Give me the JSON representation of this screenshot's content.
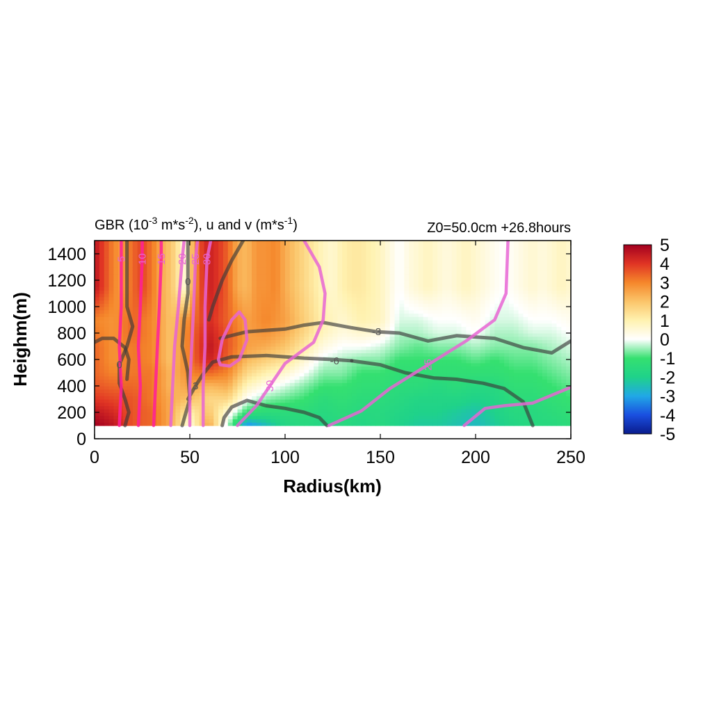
{
  "chart_data": {
    "type": "heatmap",
    "title_left": "GBR (10",
    "title_left_sup1": "-3",
    "title_left_mid": " m*s",
    "title_left_sup2": "-2",
    "title_left_mid2": "), u and v (m*s",
    "title_left_sup3": "-1",
    "title_left_end": ")",
    "title_right": "Z0=50.0cm  +26.8hours",
    "xlabel": "Radius(km)",
    "ylabel": "Heighm(m)",
    "xlim": [
      0,
      250
    ],
    "ylim": [
      0,
      1500
    ],
    "data_ylim": [
      100,
      1500
    ],
    "x_ticks": [
      0,
      50,
      100,
      150,
      200,
      250
    ],
    "y_ticks": [
      0,
      200,
      400,
      600,
      800,
      1000,
      1200,
      1400
    ],
    "colorbar": {
      "min": -5,
      "max": 5,
      "ticks": [
        5,
        4,
        3,
        2,
        1,
        0,
        -1,
        -2,
        -3,
        -4,
        -5
      ],
      "stops": [
        {
          "v": -5,
          "color": "#0a1b8c"
        },
        {
          "v": -4,
          "color": "#1a4fe0"
        },
        {
          "v": -3,
          "color": "#21a8e6"
        },
        {
          "v": -2,
          "color": "#1fd28a"
        },
        {
          "v": -1,
          "color": "#35e070"
        },
        {
          "v": 0,
          "color": "#ffffff"
        },
        {
          "v": 1,
          "color": "#fff2b0"
        },
        {
          "v": 2,
          "color": "#fbc56a"
        },
        {
          "v": 3,
          "color": "#f5872b"
        },
        {
          "v": 4,
          "color": "#e03424"
        },
        {
          "v": 5,
          "color": "#a3001f"
        }
      ]
    },
    "gbr_columns": [
      {
        "x": 0,
        "value": 4.6
      },
      {
        "x": 5,
        "value": 3.8
      },
      {
        "x": 10,
        "value": 3.0
      },
      {
        "x": 15,
        "value": 2.6
      },
      {
        "x": 20,
        "value": 3.4
      },
      {
        "x": 25,
        "value": 3.8
      },
      {
        "x": 30,
        "value": 3.2
      },
      {
        "x": 35,
        "value": 2.4
      },
      {
        "x": 40,
        "value": 2.0
      },
      {
        "x": 44,
        "value": 1.2
      },
      {
        "x": 48,
        "value": 0.2
      },
      {
        "x": 52,
        "value": 2.6
      },
      {
        "x": 56,
        "value": 3.8
      },
      {
        "x": 60,
        "value": 4.4
      },
      {
        "x": 65,
        "value": 4.0
      },
      {
        "x": 70,
        "value": 3.4
      },
      {
        "x": 75,
        "value": 2.4
      },
      {
        "x": 80,
        "value": 2.2
      },
      {
        "x": 85,
        "value": 2.8
      },
      {
        "x": 90,
        "value": 2.8
      },
      {
        "x": 95,
        "value": 3.0
      },
      {
        "x": 100,
        "value": 2.4
      },
      {
        "x": 105,
        "value": 2.0
      },
      {
        "x": 110,
        "value": 1.6
      },
      {
        "x": 115,
        "value": 1.2
      },
      {
        "x": 120,
        "value": 0.8
      },
      {
        "x": 125,
        "value": 0.6
      },
      {
        "x": 130,
        "value": 1.0
      },
      {
        "x": 135,
        "value": 1.2
      },
      {
        "x": 140,
        "value": 1.2
      },
      {
        "x": 145,
        "value": 1.0
      },
      {
        "x": 150,
        "value": 0.8
      },
      {
        "x": 155,
        "value": 0.4
      },
      {
        "x": 160,
        "value": 0.0
      },
      {
        "x": 165,
        "value": 0.4
      },
      {
        "x": 170,
        "value": 0.6
      },
      {
        "x": 175,
        "value": 0.8
      },
      {
        "x": 180,
        "value": 0.6
      },
      {
        "x": 185,
        "value": 0.4
      },
      {
        "x": 190,
        "value": 0.6
      },
      {
        "x": 195,
        "value": 0.8
      },
      {
        "x": 200,
        "value": 0.6
      },
      {
        "x": 205,
        "value": 0.4
      },
      {
        "x": 210,
        "value": 0.2
      },
      {
        "x": 215,
        "value": 0.0
      },
      {
        "x": 220,
        "value": 0.2
      },
      {
        "x": 225,
        "value": 0.4
      },
      {
        "x": 230,
        "value": 0.6
      },
      {
        "x": 235,
        "value": 0.4
      },
      {
        "x": 240,
        "value": 0.6
      },
      {
        "x": 245,
        "value": 0.8
      },
      {
        "x": 250,
        "value": 0.6
      }
    ],
    "gbr_lower_region": {
      "x": [
        0,
        10,
        20,
        30,
        40,
        50,
        60,
        70,
        80,
        90,
        100,
        110,
        120,
        130,
        140,
        150,
        160,
        170,
        180,
        190,
        200,
        210,
        220,
        230,
        240,
        250
      ],
      "y": [
        100,
        200,
        300,
        400,
        500,
        600,
        700,
        800,
        900
      ],
      "values": [
        [
          5.0,
          4.6,
          4.0,
          3.6,
          3.4,
          3.4,
          3.4,
          3.2,
          3.0
        ],
        [
          4.6,
          4.2,
          3.8,
          3.4,
          3.0,
          2.8,
          2.8,
          2.8,
          2.8
        ],
        [
          3.6,
          3.6,
          3.6,
          3.4,
          3.2,
          3.2,
          3.2,
          3.4,
          3.4
        ],
        [
          3.4,
          3.4,
          3.2,
          3.2,
          3.2,
          3.0,
          3.0,
          3.0,
          3.0
        ],
        [
          2.4,
          2.4,
          2.4,
          2.2,
          2.2,
          2.0,
          2.0,
          2.0,
          2.0
        ],
        [
          0.4,
          1.0,
          2.0,
          2.6,
          3.0,
          3.2,
          3.2,
          3.2,
          3.0
        ],
        [
          2.6,
          2.0,
          1.6,
          2.2,
          3.4,
          4.4,
          4.6,
          4.4,
          4.2
        ],
        [
          -0.4,
          0.4,
          1.6,
          2.4,
          3.0,
          3.4,
          3.6,
          3.6,
          3.4
        ],
        [
          -3.4,
          -1.2,
          0.0,
          0.8,
          1.6,
          2.2,
          2.6,
          2.6,
          2.6
        ],
        [
          -2.6,
          -1.4,
          -0.6,
          0.2,
          1.0,
          1.8,
          2.4,
          2.8,
          3.0
        ],
        [
          -1.8,
          -1.4,
          -0.8,
          -0.2,
          0.6,
          1.4,
          2.0,
          2.4,
          2.6
        ],
        [
          -1.6,
          -1.4,
          -1.0,
          -0.6,
          0.0,
          0.6,
          1.2,
          1.6,
          1.8
        ],
        [
          -1.8,
          -1.6,
          -1.4,
          -1.0,
          -0.6,
          -0.2,
          0.4,
          0.8,
          1.0
        ],
        [
          -1.6,
          -1.4,
          -1.2,
          -1.0,
          -0.6,
          -0.4,
          0.0,
          0.4,
          0.6
        ],
        [
          -1.8,
          -1.6,
          -1.4,
          -1.2,
          -1.0,
          -0.6,
          0.0,
          0.6,
          1.0
        ],
        [
          -1.6,
          -1.6,
          -1.4,
          -1.2,
          -1.0,
          -0.6,
          -0.2,
          0.4,
          0.8
        ],
        [
          -2.0,
          -1.8,
          -1.6,
          -1.4,
          -1.2,
          -1.0,
          -0.6,
          -0.4,
          -0.2
        ],
        [
          -2.2,
          -2.0,
          -1.8,
          -1.4,
          -1.2,
          -1.0,
          -0.8,
          -0.4,
          -0.2
        ],
        [
          -2.2,
          -2.0,
          -1.8,
          -1.6,
          -1.2,
          -1.0,
          -0.6,
          -0.2,
          0.0
        ],
        [
          -2.4,
          -2.2,
          -1.8,
          -1.4,
          -1.2,
          -1.0,
          -0.6,
          -0.2,
          0.0
        ],
        [
          -2.6,
          -2.4,
          -2.0,
          -1.6,
          -1.2,
          -0.8,
          -0.4,
          0.0,
          0.2
        ],
        [
          -2.2,
          -2.0,
          -1.8,
          -1.6,
          -1.2,
          -1.0,
          -0.6,
          -0.4,
          -0.2
        ],
        [
          -1.8,
          -1.6,
          -1.4,
          -1.2,
          -1.0,
          -0.8,
          -0.6,
          -0.4,
          -0.2
        ],
        [
          -1.6,
          -1.6,
          -1.4,
          -1.2,
          -1.0,
          -0.8,
          -0.6,
          -0.2,
          0.0
        ],
        [
          -1.6,
          -1.4,
          -1.2,
          -1.0,
          -0.8,
          -0.6,
          -0.4,
          -0.2,
          0.0
        ],
        [
          -1.4,
          -1.2,
          -1.0,
          -0.8,
          -0.6,
          -0.4,
          -0.2,
          0.0,
          0.2
        ]
      ]
    },
    "u_contours": [
      {
        "label": "0",
        "label_at": [
          13,
          560
        ],
        "points": [
          [
            16,
            100
          ],
          [
            18,
            200
          ],
          [
            16,
            300
          ],
          [
            13,
            420
          ],
          [
            13,
            560
          ],
          [
            17,
            700
          ],
          [
            20,
            850
          ],
          [
            17,
            1000
          ],
          [
            17,
            1200
          ],
          [
            17,
            1500
          ]
        ]
      },
      {
        "label": "0",
        "label_at": [
          49,
          1190
        ],
        "points": [
          [
            46,
            100
          ],
          [
            50,
            300
          ],
          [
            49,
            500
          ],
          [
            46,
            700
          ],
          [
            47,
            900
          ],
          [
            49,
            1100
          ],
          [
            49,
            1190
          ],
          [
            49,
            1300
          ],
          [
            49,
            1500
          ]
        ]
      },
      {
        "label": "",
        "label_at": null,
        "points": [
          [
            0,
            730
          ],
          [
            4,
            760
          ],
          [
            10,
            760
          ],
          [
            16,
            690
          ],
          [
            18,
            600
          ],
          [
            17,
            450
          ]
        ]
      },
      {
        "label": "",
        "label_at": null,
        "points": [
          [
            78,
            1500
          ],
          [
            72,
            1350
          ],
          [
            67,
            1200
          ],
          [
            62,
            1000
          ],
          [
            60,
            900
          ]
        ]
      },
      {
        "label": "-3",
        "label_at": [
          148,
          810
        ],
        "points": [
          [
            66,
            760
          ],
          [
            80,
            810
          ],
          [
            100,
            830
          ],
          [
            110,
            860
          ],
          [
            120,
            880
          ],
          [
            135,
            840
          ],
          [
            148,
            810
          ],
          [
            160,
            800
          ],
          [
            175,
            740
          ],
          [
            190,
            780
          ],
          [
            210,
            760
          ],
          [
            225,
            690
          ],
          [
            240,
            650
          ],
          [
            250,
            740
          ]
        ]
      },
      {
        "label": "3",
        "label_at": [
          53,
          400
        ],
        "points": [
          [
            49,
            300
          ],
          [
            53,
            400
          ],
          [
            57,
            490
          ],
          [
            62,
            580
          ],
          [
            72,
            620
          ],
          [
            90,
            630
          ],
          [
            110,
            610
          ],
          [
            125,
            600
          ],
          [
            135,
            590
          ]
        ]
      },
      {
        "label": "-6",
        "label_at": [
          126,
          590
        ],
        "points": [
          [
            135,
            590
          ],
          [
            150,
            560
          ],
          [
            163,
            500
          ],
          [
            178,
            460
          ],
          [
            190,
            450
          ],
          [
            204,
            420
          ],
          [
            215,
            380
          ],
          [
            225,
            280
          ],
          [
            230,
            100
          ]
        ]
      },
      {
        "label": "",
        "label_at": null,
        "points": [
          [
            67,
            100
          ],
          [
            68,
            160
          ],
          [
            72,
            240
          ],
          [
            80,
            290
          ],
          [
            90,
            250
          ],
          [
            100,
            230
          ],
          [
            110,
            200
          ],
          [
            118,
            160
          ],
          [
            122,
            100
          ]
        ]
      }
    ],
    "v_contours": [
      {
        "label": "5",
        "label_at": [
          14,
          1360
        ],
        "points": [
          [
            13,
            100
          ],
          [
            14,
            400
          ],
          [
            13,
            700
          ],
          [
            14,
            1000
          ],
          [
            14,
            1360
          ],
          [
            14,
            1500
          ]
        ]
      },
      {
        "label": "10",
        "label_at": [
          25,
          1360
        ],
        "points": [
          [
            23,
            100
          ],
          [
            24,
            400
          ],
          [
            23,
            700
          ],
          [
            24,
            1000
          ],
          [
            25,
            1360
          ],
          [
            25,
            1500
          ]
        ]
      },
      {
        "label": "15",
        "label_at": [
          35,
          1360
        ],
        "points": [
          [
            31,
            100
          ],
          [
            32,
            400
          ],
          [
            33,
            700
          ],
          [
            34,
            1000
          ],
          [
            35,
            1360
          ],
          [
            35,
            1500
          ]
        ]
      },
      {
        "label": "20",
        "label_at": [
          46,
          1360
        ],
        "points": [
          [
            40,
            100
          ],
          [
            41,
            400
          ],
          [
            42,
            700
          ],
          [
            44,
            1000
          ],
          [
            46,
            1360
          ],
          [
            47,
            1500
          ]
        ]
      },
      {
        "label": "25",
        "label_at": [
          53,
          1360
        ],
        "points": [
          [
            50,
            100
          ],
          [
            50,
            400
          ],
          [
            51,
            700
          ],
          [
            52,
            1000
          ],
          [
            53,
            1360
          ],
          [
            54,
            1500
          ]
        ]
      },
      {
        "label": "30",
        "label_at": [
          59,
          1360
        ],
        "points": [
          [
            57,
            100
          ],
          [
            57,
            400
          ],
          [
            58,
            700
          ],
          [
            58,
            1000
          ],
          [
            59,
            1360
          ],
          [
            61,
            1500
          ]
        ]
      },
      {
        "label": "",
        "label_at": null,
        "points": [
          [
            65,
            600
          ],
          [
            67,
            750
          ],
          [
            72,
            900
          ],
          [
            76,
            960
          ],
          [
            79,
            900
          ],
          [
            80,
            750
          ],
          [
            76,
            600
          ],
          [
            71,
            550
          ],
          [
            66,
            560
          ],
          [
            65,
            600
          ]
        ]
      },
      {
        "label": "30",
        "label_at": [
          92,
          400
        ],
        "points": [
          [
            75,
            100
          ],
          [
            85,
            250
          ],
          [
            92,
            400
          ],
          [
            100,
            570
          ],
          [
            115,
            730
          ],
          [
            120,
            900
          ],
          [
            121,
            1100
          ],
          [
            118,
            1300
          ],
          [
            110,
            1500
          ]
        ]
      },
      {
        "label": "25",
        "label_at": [
          175,
          560
        ],
        "points": [
          [
            123,
            100
          ],
          [
            140,
            210
          ],
          [
            155,
            380
          ],
          [
            175,
            560
          ],
          [
            195,
            740
          ],
          [
            210,
            900
          ],
          [
            216,
            1100
          ],
          [
            217,
            1500
          ]
        ]
      },
      {
        "label": "",
        "label_at": null,
        "points": [
          [
            194,
            100
          ],
          [
            205,
            230
          ],
          [
            215,
            250
          ],
          [
            230,
            270
          ],
          [
            240,
            330
          ],
          [
            250,
            390
          ]
        ]
      }
    ],
    "colors": {
      "u_contour": "#3a3a3a",
      "v_contour": "#e865d4",
      "v_contour_inner": "#ff1f9a"
    }
  }
}
